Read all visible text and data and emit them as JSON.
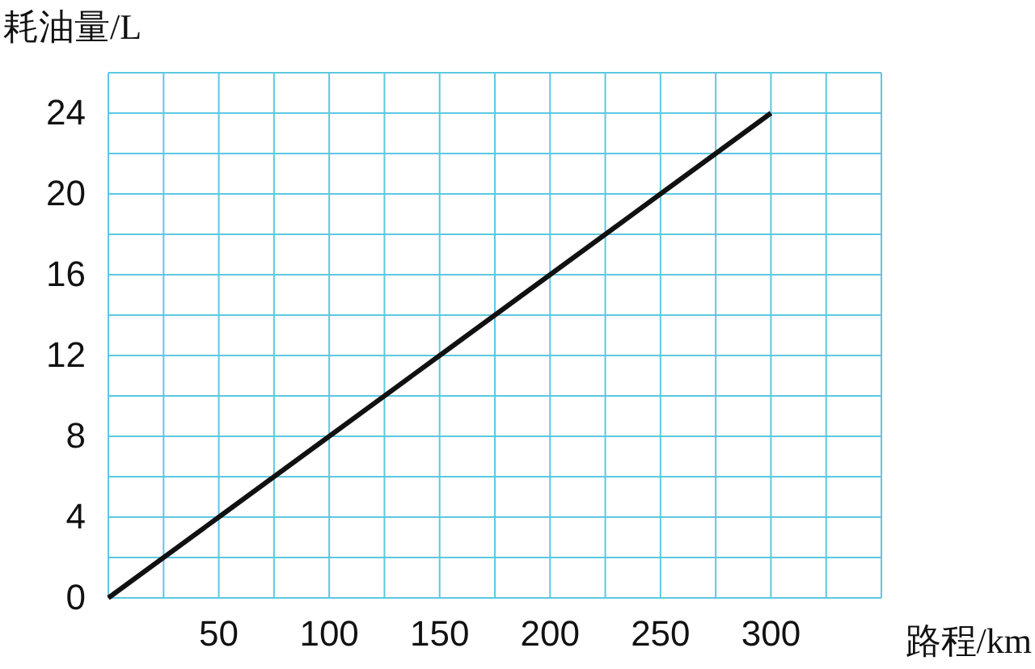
{
  "chart_data": {
    "type": "line",
    "ylabel": "耗油量/L",
    "xlabel": "路程/km",
    "x": [
      0,
      50,
      100,
      150,
      200,
      250,
      300
    ],
    "series": [
      {
        "color": "#111111",
        "values": [
          0,
          4,
          8,
          12,
          16,
          20,
          24
        ]
      }
    ],
    "xlim": [
      0,
      350
    ],
    "ylim": [
      0,
      26
    ],
    "xticks": [
      {
        "value": 0,
        "label": null
      },
      {
        "value": 25,
        "label": null
      },
      50,
      {
        "value": 75,
        "label": null
      },
      100,
      {
        "value": 125,
        "label": null
      },
      150,
      {
        "value": 175,
        "label": null
      },
      200,
      {
        "value": 225,
        "label": null
      },
      250,
      {
        "value": 275,
        "label": null
      },
      300,
      {
        "value": 325,
        "label": null
      },
      {
        "value": 350,
        "label": null
      }
    ],
    "yticks": [
      0,
      {
        "value": 2,
        "label": null
      },
      4,
      {
        "value": 6,
        "label": null
      },
      8,
      {
        "value": 10,
        "label": null
      },
      12,
      {
        "value": 14,
        "label": null
      },
      16,
      {
        "value": 18,
        "label": null
      },
      20,
      {
        "value": 22,
        "label": null
      },
      24,
      {
        "value": 26,
        "label": null
      }
    ],
    "grid": true,
    "marker": "none",
    "line_style": "solid"
  }
}
